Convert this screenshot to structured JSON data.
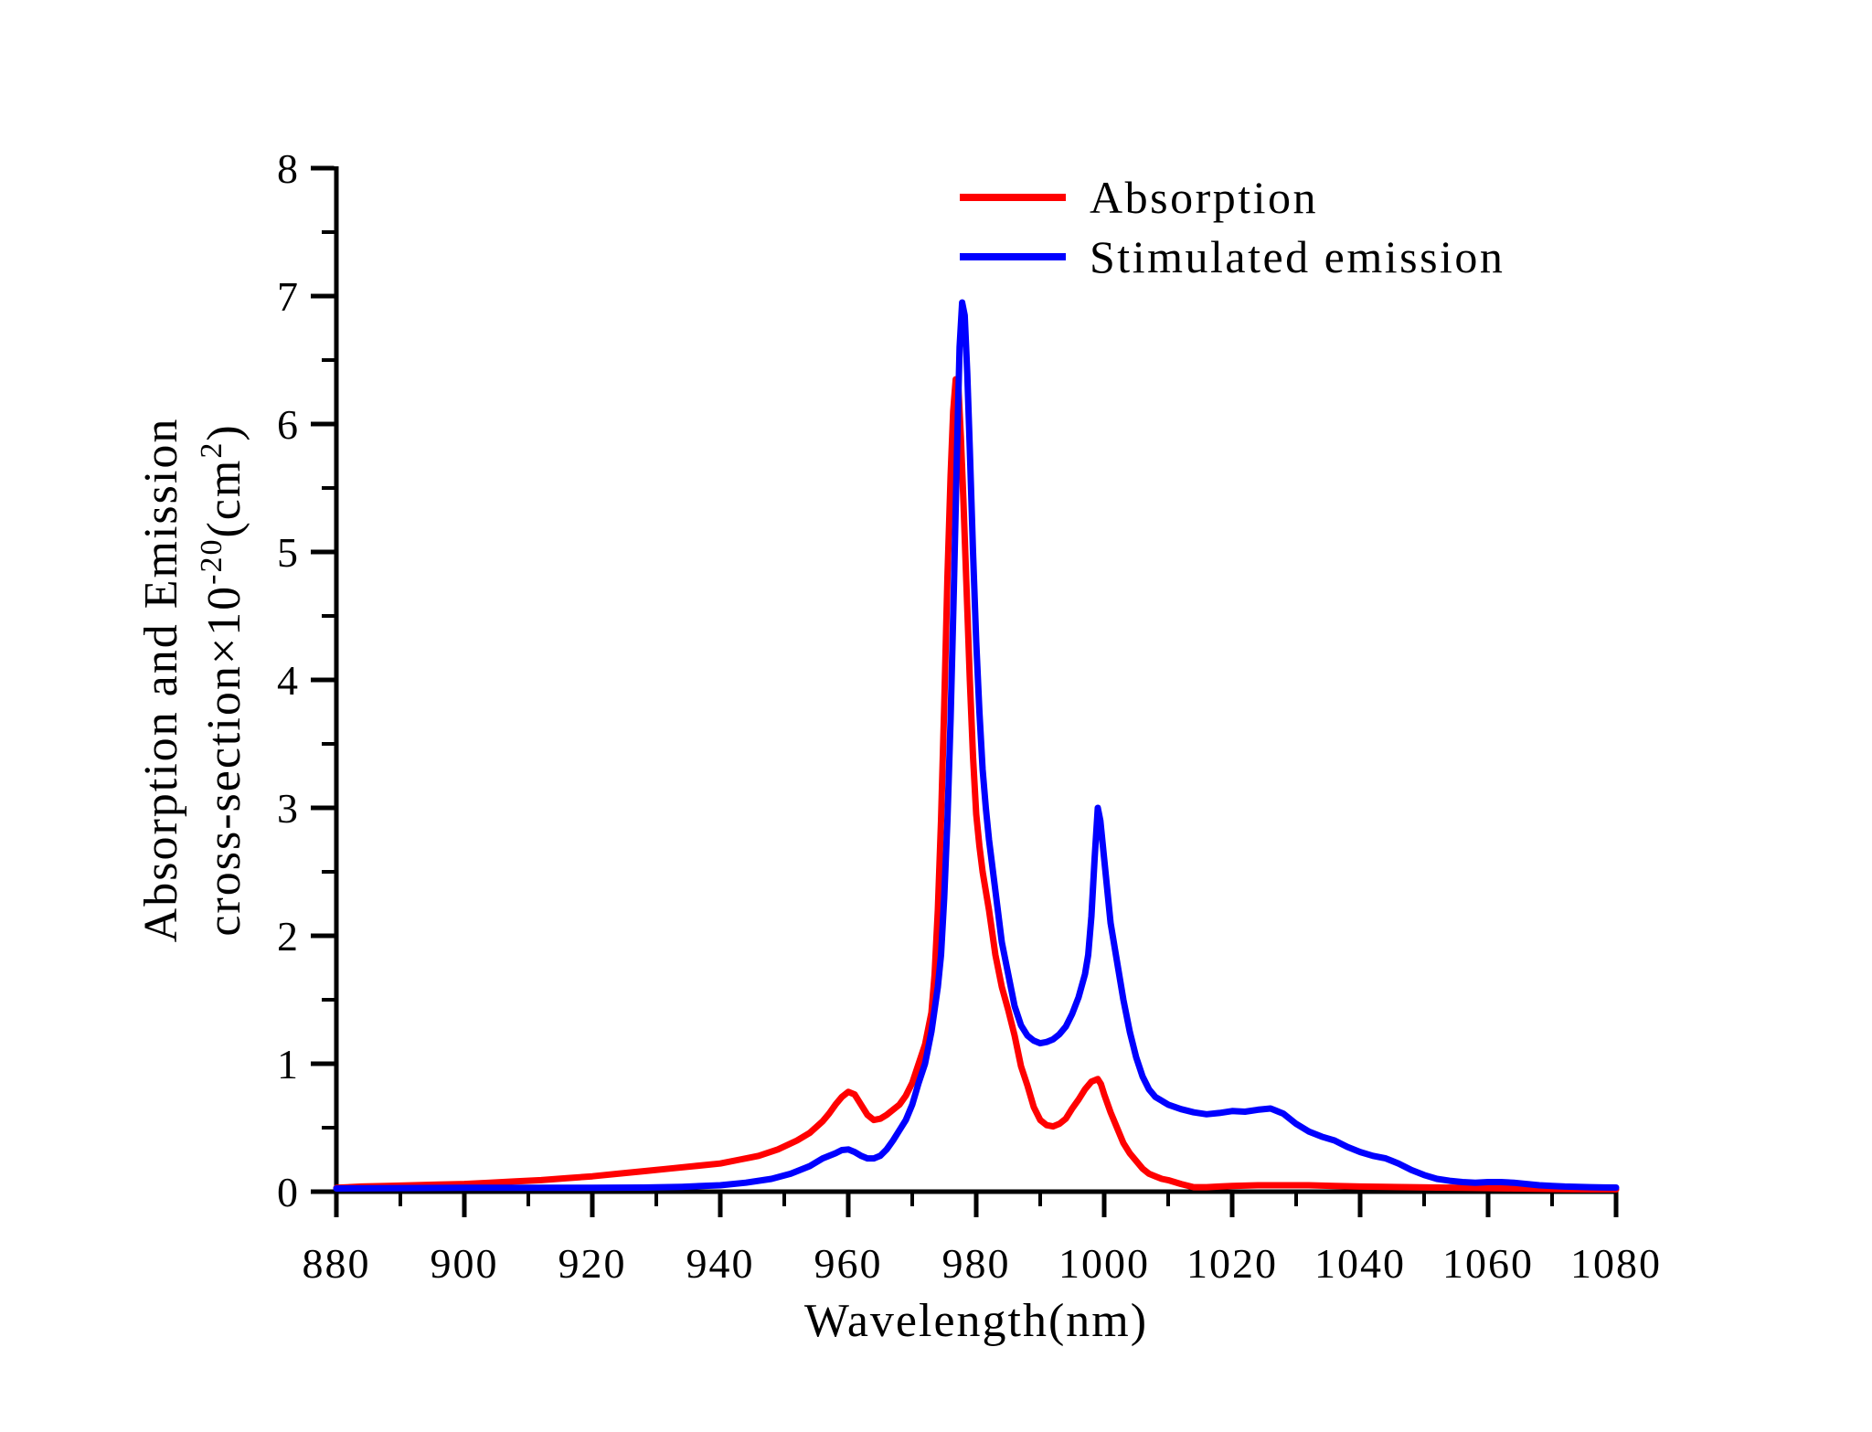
{
  "figure": {
    "background": "#ffffff",
    "axis_color": "#000000"
  },
  "axes": {
    "x": {
      "min": 880,
      "max": 1080,
      "major_step": 20,
      "minor_step": 10,
      "label": "Wavelength(nm)"
    },
    "y": {
      "min": 0,
      "max": 8,
      "major_step": 1,
      "minor_step": 0.5,
      "label_line1": "Absorption and Emission",
      "label_line2_parts": [
        {
          "t": "cross-section×10"
        },
        {
          "t": "-20",
          "sup": true
        },
        {
          "t": "(cm"
        },
        {
          "t": "2",
          "sup": true
        },
        {
          "t": ")"
        }
      ]
    }
  },
  "legend": {
    "position": "top-center",
    "items": [
      {
        "label": "Absorption",
        "color": "#ff0000"
      },
      {
        "label": "Stimulated emission",
        "color": "#0000ff"
      }
    ]
  },
  "chart_data": {
    "type": "line",
    "title": "",
    "xlabel": "Wavelength(nm)",
    "ylabel": "Absorption and Emission cross-section×10⁻²⁰(cm²)",
    "xlim": [
      880,
      1080
    ],
    "ylim": [
      0,
      8
    ],
    "grid": false,
    "legend_position": "top-center",
    "series": [
      {
        "name": "Absorption",
        "color": "#ff0000",
        "points": [
          [
            880,
            0.03
          ],
          [
            884,
            0.04
          ],
          [
            888,
            0.045
          ],
          [
            892,
            0.05
          ],
          [
            896,
            0.055
          ],
          [
            900,
            0.06
          ],
          [
            904,
            0.07
          ],
          [
            908,
            0.08
          ],
          [
            912,
            0.09
          ],
          [
            916,
            0.105
          ],
          [
            920,
            0.12
          ],
          [
            924,
            0.14
          ],
          [
            928,
            0.16
          ],
          [
            932,
            0.18
          ],
          [
            936,
            0.2
          ],
          [
            940,
            0.22
          ],
          [
            943,
            0.25
          ],
          [
            946,
            0.28
          ],
          [
            949,
            0.33
          ],
          [
            952,
            0.4
          ],
          [
            954,
            0.46
          ],
          [
            956,
            0.55
          ],
          [
            957,
            0.61
          ],
          [
            958,
            0.68
          ],
          [
            959,
            0.74
          ],
          [
            960,
            0.78
          ],
          [
            961,
            0.76
          ],
          [
            962,
            0.68
          ],
          [
            963,
            0.6
          ],
          [
            964,
            0.56
          ],
          [
            965,
            0.57
          ],
          [
            966,
            0.6
          ],
          [
            967,
            0.64
          ],
          [
            968,
            0.68
          ],
          [
            969,
            0.75
          ],
          [
            970,
            0.85
          ],
          [
            971,
            1.0
          ],
          [
            972,
            1.15
          ],
          [
            973,
            1.4
          ],
          [
            973.5,
            1.7
          ],
          [
            974,
            2.2
          ],
          [
            974.5,
            2.9
          ],
          [
            975,
            3.8
          ],
          [
            975.5,
            4.8
          ],
          [
            976,
            5.6
          ],
          [
            976.4,
            6.1
          ],
          [
            976.8,
            6.35
          ],
          [
            977.2,
            6.3
          ],
          [
            977.6,
            5.9
          ],
          [
            978,
            5.4
          ],
          [
            978.5,
            4.7
          ],
          [
            979,
            4.0
          ],
          [
            979.5,
            3.4
          ],
          [
            980,
            2.95
          ],
          [
            980.5,
            2.7
          ],
          [
            981,
            2.5
          ],
          [
            982,
            2.2
          ],
          [
            983,
            1.85
          ],
          [
            984,
            1.6
          ],
          [
            985,
            1.42
          ],
          [
            986,
            1.22
          ],
          [
            987,
            0.98
          ],
          [
            988,
            0.83
          ],
          [
            989,
            0.66
          ],
          [
            990,
            0.56
          ],
          [
            991,
            0.52
          ],
          [
            992,
            0.51
          ],
          [
            993,
            0.53
          ],
          [
            994,
            0.57
          ],
          [
            995,
            0.65
          ],
          [
            996,
            0.72
          ],
          [
            997,
            0.8
          ],
          [
            998,
            0.86
          ],
          [
            999,
            0.88
          ],
          [
            999.5,
            0.84
          ],
          [
            1000,
            0.76
          ],
          [
            1001,
            0.62
          ],
          [
            1002,
            0.5
          ],
          [
            1003,
            0.38
          ],
          [
            1004,
            0.3
          ],
          [
            1005,
            0.24
          ],
          [
            1006,
            0.18
          ],
          [
            1007,
            0.14
          ],
          [
            1008,
            0.12
          ],
          [
            1009,
            0.1
          ],
          [
            1010,
            0.09
          ],
          [
            1012,
            0.06
          ],
          [
            1014,
            0.035
          ],
          [
            1016,
            0.035
          ],
          [
            1018,
            0.04
          ],
          [
            1020,
            0.045
          ],
          [
            1024,
            0.05
          ],
          [
            1028,
            0.05
          ],
          [
            1032,
            0.05
          ],
          [
            1036,
            0.045
          ],
          [
            1040,
            0.04
          ],
          [
            1044,
            0.038
          ],
          [
            1048,
            0.035
          ],
          [
            1052,
            0.032
          ],
          [
            1056,
            0.03
          ],
          [
            1060,
            0.028
          ],
          [
            1064,
            0.025
          ],
          [
            1068,
            0.022
          ],
          [
            1072,
            0.02
          ],
          [
            1076,
            0.018
          ],
          [
            1080,
            0.018
          ]
        ]
      },
      {
        "name": "Stimulated emission",
        "color": "#0000ff",
        "points": [
          [
            880,
            0.025
          ],
          [
            890,
            0.028
          ],
          [
            900,
            0.03
          ],
          [
            910,
            0.03
          ],
          [
            920,
            0.03
          ],
          [
            928,
            0.032
          ],
          [
            934,
            0.038
          ],
          [
            940,
            0.05
          ],
          [
            944,
            0.07
          ],
          [
            948,
            0.1
          ],
          [
            951,
            0.14
          ],
          [
            954,
            0.2
          ],
          [
            956,
            0.26
          ],
          [
            958,
            0.3
          ],
          [
            959,
            0.325
          ],
          [
            960,
            0.33
          ],
          [
            961,
            0.31
          ],
          [
            962,
            0.28
          ],
          [
            963,
            0.26
          ],
          [
            964,
            0.26
          ],
          [
            965,
            0.28
          ],
          [
            966,
            0.33
          ],
          [
            967,
            0.4
          ],
          [
            968,
            0.48
          ],
          [
            969,
            0.56
          ],
          [
            970,
            0.68
          ],
          [
            971,
            0.85
          ],
          [
            972,
            1.0
          ],
          [
            973,
            1.25
          ],
          [
            974,
            1.6
          ],
          [
            974.5,
            1.85
          ],
          [
            975,
            2.3
          ],
          [
            975.5,
            2.9
          ],
          [
            976,
            3.7
          ],
          [
            976.5,
            4.7
          ],
          [
            977,
            5.8
          ],
          [
            977.4,
            6.6
          ],
          [
            977.8,
            6.95
          ],
          [
            978.2,
            6.85
          ],
          [
            978.6,
            6.4
          ],
          [
            979,
            5.8
          ],
          [
            979.5,
            5.0
          ],
          [
            980,
            4.3
          ],
          [
            980.5,
            3.75
          ],
          [
            981,
            3.3
          ],
          [
            981.5,
            3.0
          ],
          [
            982,
            2.75
          ],
          [
            983,
            2.35
          ],
          [
            984,
            1.95
          ],
          [
            985,
            1.7
          ],
          [
            986,
            1.45
          ],
          [
            987,
            1.3
          ],
          [
            988,
            1.22
          ],
          [
            989,
            1.18
          ],
          [
            990,
            1.16
          ],
          [
            991,
            1.17
          ],
          [
            992,
            1.19
          ],
          [
            993,
            1.23
          ],
          [
            994,
            1.29
          ],
          [
            995,
            1.39
          ],
          [
            996,
            1.52
          ],
          [
            997,
            1.7
          ],
          [
            997.5,
            1.85
          ],
          [
            998,
            2.15
          ],
          [
            998.5,
            2.6
          ],
          [
            999,
            3.0
          ],
          [
            999.4,
            2.9
          ],
          [
            1000,
            2.6
          ],
          [
            1000.5,
            2.35
          ],
          [
            1001,
            2.1
          ],
          [
            1002,
            1.8
          ],
          [
            1003,
            1.5
          ],
          [
            1004,
            1.25
          ],
          [
            1005,
            1.05
          ],
          [
            1006,
            0.9
          ],
          [
            1007,
            0.8
          ],
          [
            1008,
            0.74
          ],
          [
            1010,
            0.68
          ],
          [
            1012,
            0.645
          ],
          [
            1014,
            0.62
          ],
          [
            1016,
            0.605
          ],
          [
            1018,
            0.615
          ],
          [
            1020,
            0.63
          ],
          [
            1022,
            0.625
          ],
          [
            1024,
            0.64
          ],
          [
            1026,
            0.65
          ],
          [
            1028,
            0.61
          ],
          [
            1030,
            0.53
          ],
          [
            1032,
            0.47
          ],
          [
            1034,
            0.43
          ],
          [
            1036,
            0.4
          ],
          [
            1038,
            0.35
          ],
          [
            1040,
            0.31
          ],
          [
            1042,
            0.28
          ],
          [
            1044,
            0.26
          ],
          [
            1046,
            0.22
          ],
          [
            1048,
            0.17
          ],
          [
            1050,
            0.13
          ],
          [
            1052,
            0.1
          ],
          [
            1054,
            0.085
          ],
          [
            1056,
            0.075
          ],
          [
            1058,
            0.07
          ],
          [
            1060,
            0.075
          ],
          [
            1062,
            0.075
          ],
          [
            1064,
            0.07
          ],
          [
            1066,
            0.06
          ],
          [
            1068,
            0.05
          ],
          [
            1070,
            0.045
          ],
          [
            1072,
            0.04
          ],
          [
            1074,
            0.038
          ],
          [
            1076,
            0.035
          ],
          [
            1078,
            0.033
          ],
          [
            1080,
            0.032
          ]
        ]
      }
    ]
  }
}
